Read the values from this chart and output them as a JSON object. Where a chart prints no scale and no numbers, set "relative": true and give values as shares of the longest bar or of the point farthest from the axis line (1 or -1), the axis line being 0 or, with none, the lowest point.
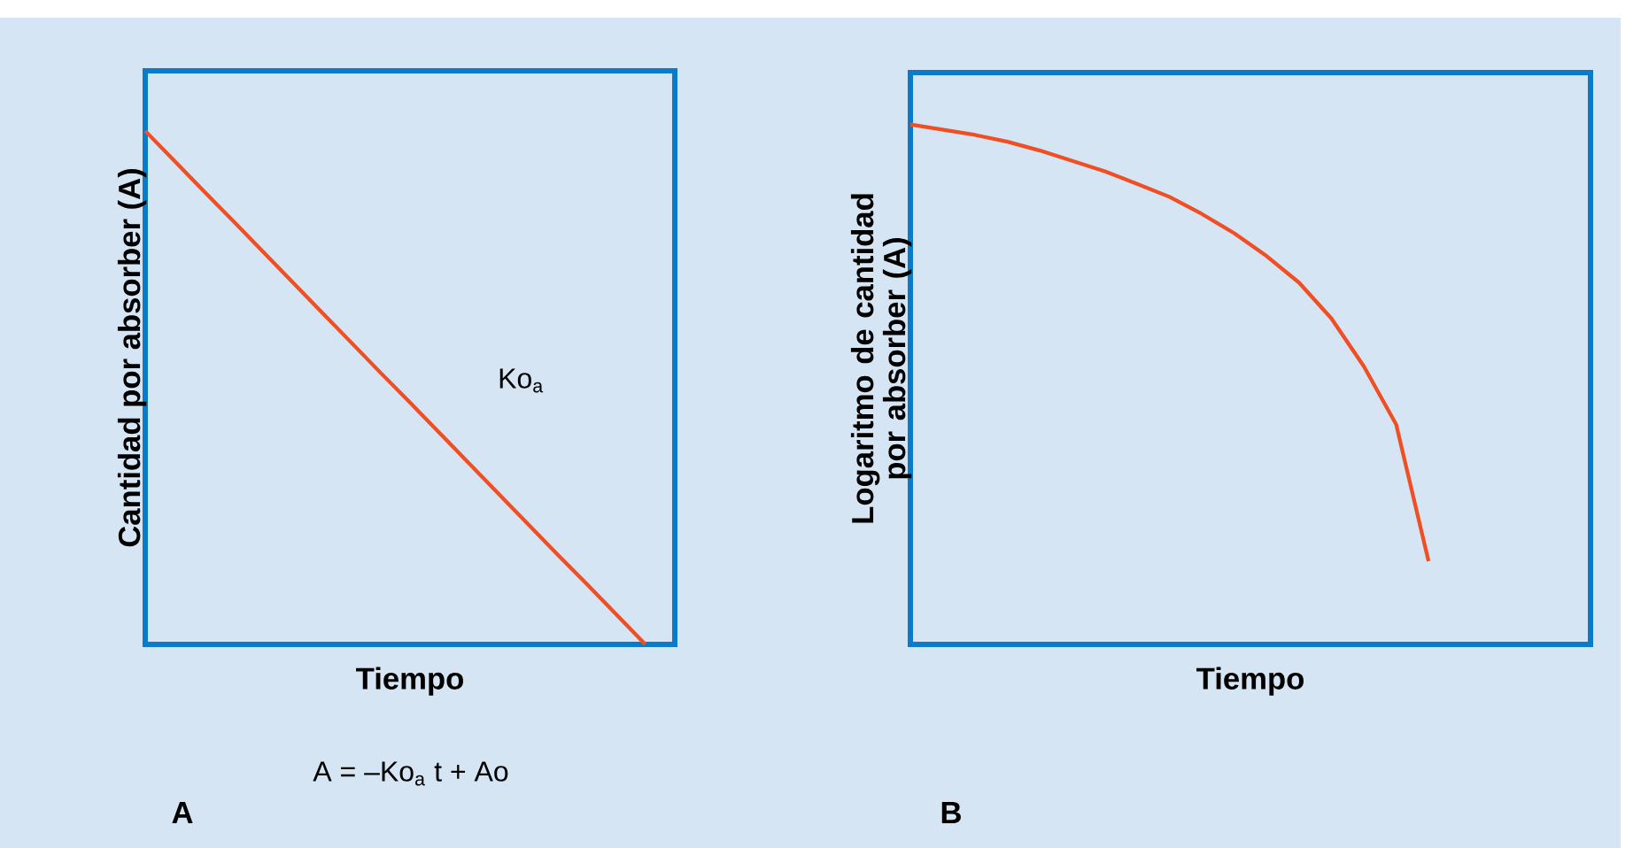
{
  "chart_data": [
    {
      "type": "line",
      "xlabel": "Tiempo",
      "ylabel": "Cantidad por absorber (A)",
      "categories": [
        null,
        null,
        null,
        null,
        null,
        null,
        null,
        null,
        null,
        null,
        null,
        null,
        null,
        null,
        null,
        null,
        null,
        null,
        null
      ],
      "values": [
        1,
        0.941,
        0.882,
        0.824,
        0.765,
        0.706,
        0.647,
        0.588,
        0.529,
        0.471,
        0.412,
        0.353,
        0.294,
        0.235,
        0.176,
        0.118,
        0.059,
        0,
        null
      ],
      "color": "#f04e23",
      "relative": true,
      "tick_labels": false,
      "annotations": [
        "Ko$_{a}$",
        "A = –Ko$_{a}$ t + Ao",
        "A"
      ]
    },
    {
      "type": "line",
      "xlabel": "Tiempo",
      "ylabel": "Logaritmo de cantidad por absorber (A)",
      "categories": [
        null,
        null,
        null,
        null,
        null,
        null,
        null,
        null,
        null,
        null,
        null,
        null,
        null,
        null,
        null,
        null,
        null,
        null,
        null,
        null,
        null,
        null
      ],
      "values": [
        1,
        0.99,
        0.98,
        0.967,
        0.95,
        0.93,
        0.91,
        0.886,
        0.861,
        0.828,
        0.791,
        0.747,
        0.696,
        0.627,
        0.535,
        0.423,
        0.16,
        null,
        null,
        null,
        null,
        null
      ],
      "color": "#f04e23",
      "relative": true,
      "tick_labels": false,
      "annotations": [
        "B"
      ]
    }
  ]
}
